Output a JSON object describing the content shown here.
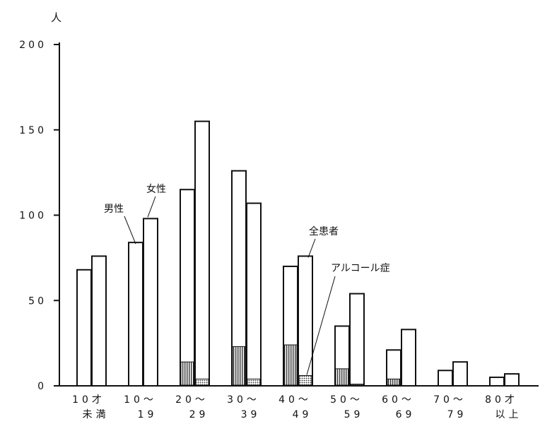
{
  "chart_data": {
    "type": "bar",
    "unit": "人",
    "ylim": [
      0,
      200
    ],
    "yticks": [
      0,
      50,
      100,
      150,
      200
    ],
    "ytick_labels": [
      "0",
      "50",
      "100",
      "150",
      "200"
    ],
    "categories": [
      [
        "10才",
        "未満"
      ],
      [
        "10～",
        "19"
      ],
      [
        "20～",
        "29"
      ],
      [
        "30～",
        "39"
      ],
      [
        "40～",
        "49"
      ],
      [
        "50～",
        "59"
      ],
      [
        "60～",
        "69"
      ],
      [
        "70～",
        "79"
      ],
      [
        "80才",
        "以上"
      ]
    ],
    "series": [
      {
        "name": "男性",
        "total": [
          68,
          84,
          115,
          126,
          70,
          35,
          21,
          9,
          5
        ],
        "alcohol": [
          0,
          0,
          14,
          23,
          24,
          10,
          4,
          0,
          0
        ]
      },
      {
        "name": "女性",
        "total": [
          76,
          98,
          155,
          107,
          76,
          54,
          33,
          14,
          7
        ],
        "alcohol": [
          0,
          0,
          4,
          4,
          6,
          1,
          0,
          0,
          0
        ]
      }
    ],
    "annotations": {
      "male": "男性",
      "female": "女性",
      "total": "全患者",
      "alcohol": "アルコール症"
    },
    "grid": false,
    "legend": "none"
  }
}
